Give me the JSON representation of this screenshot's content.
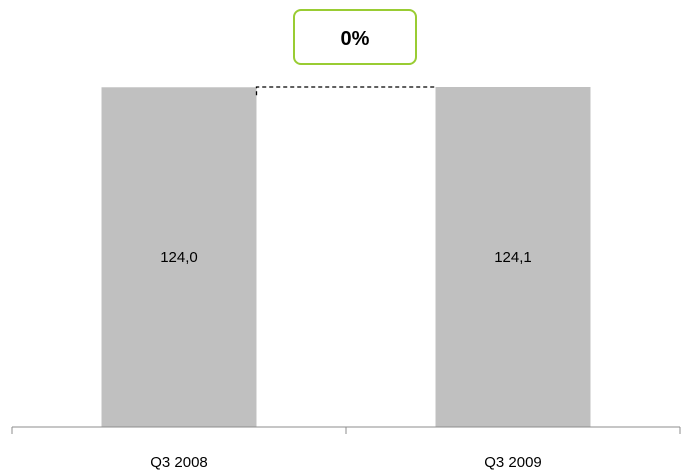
{
  "chart_data": {
    "type": "bar",
    "categories": [
      "Q3 2008",
      "Q3 2009"
    ],
    "values": [
      124.0,
      124.1
    ],
    "value_labels": [
      "124,0",
      "124,1"
    ],
    "title": "",
    "xlabel": "",
    "ylabel": "",
    "ylim": [
      0,
      124.1
    ],
    "grid": false,
    "legend": "none",
    "bar_color": "#c0c0c0",
    "change": {
      "label": "0%",
      "border_color": "#99cc33"
    }
  }
}
